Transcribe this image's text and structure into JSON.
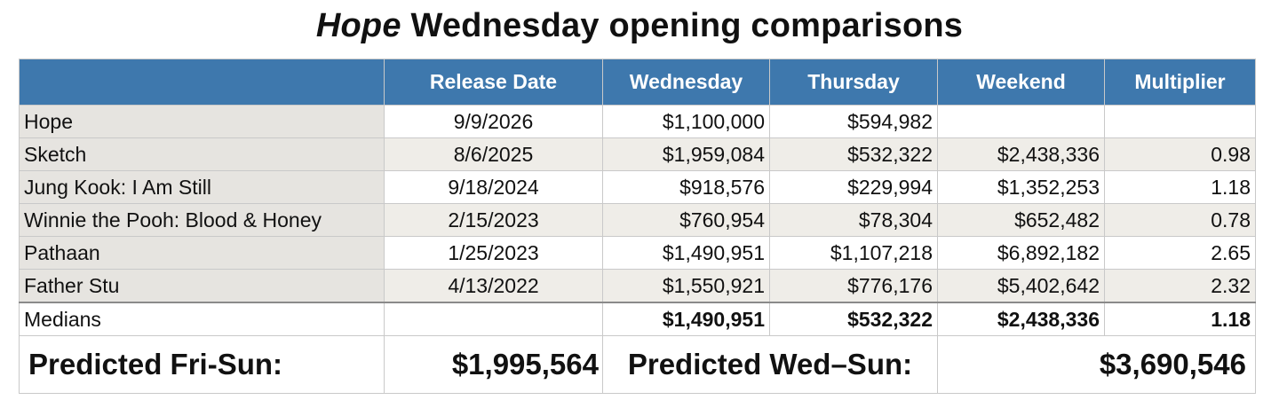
{
  "chart_data": {
    "type": "table",
    "title_italic": "Hope",
    "title_rest": " Wednesday opening comparisons",
    "columns": [
      "",
      "Release Date",
      "Wednesday",
      "Thursday",
      "Weekend",
      "Multiplier"
    ],
    "rows": [
      [
        "Hope",
        "9/9/2026",
        "$1,100,000",
        "$594,982",
        "",
        ""
      ],
      [
        "Sketch",
        "8/6/2025",
        "$1,959,084",
        "$532,322",
        "$2,438,336",
        "0.98"
      ],
      [
        "Jung Kook: I Am Still",
        "9/18/2024",
        "$918,576",
        "$229,994",
        "$1,352,253",
        "1.18"
      ],
      [
        "Winnie the Pooh: Blood & Honey",
        "2/15/2023",
        "$760,954",
        "$78,304",
        "$652,482",
        "0.78"
      ],
      [
        "Pathaan",
        "1/25/2023",
        "$1,490,951",
        "$1,107,218",
        "$6,892,182",
        "2.65"
      ],
      [
        "Father Stu",
        "4/13/2022",
        "$1,550,921",
        "$776,176",
        "$5,402,642",
        "2.32"
      ]
    ],
    "medians": {
      "label": "Medians",
      "values": [
        "",
        "$1,490,951",
        "$532,322",
        "$2,438,336",
        "1.18"
      ]
    },
    "predictions": {
      "fri_sun_label": "Predicted Fri-Sun:",
      "fri_sun_value": "$1,995,564",
      "wed_sun_label": "Predicted Wed–Sun:",
      "wed_sun_value": "$3,690,546"
    },
    "colors": {
      "header_bg": "#3e78ad",
      "header_text": "#ffffff",
      "name_col_bg": "#e6e4e0",
      "band_bg": "#efede8"
    }
  }
}
